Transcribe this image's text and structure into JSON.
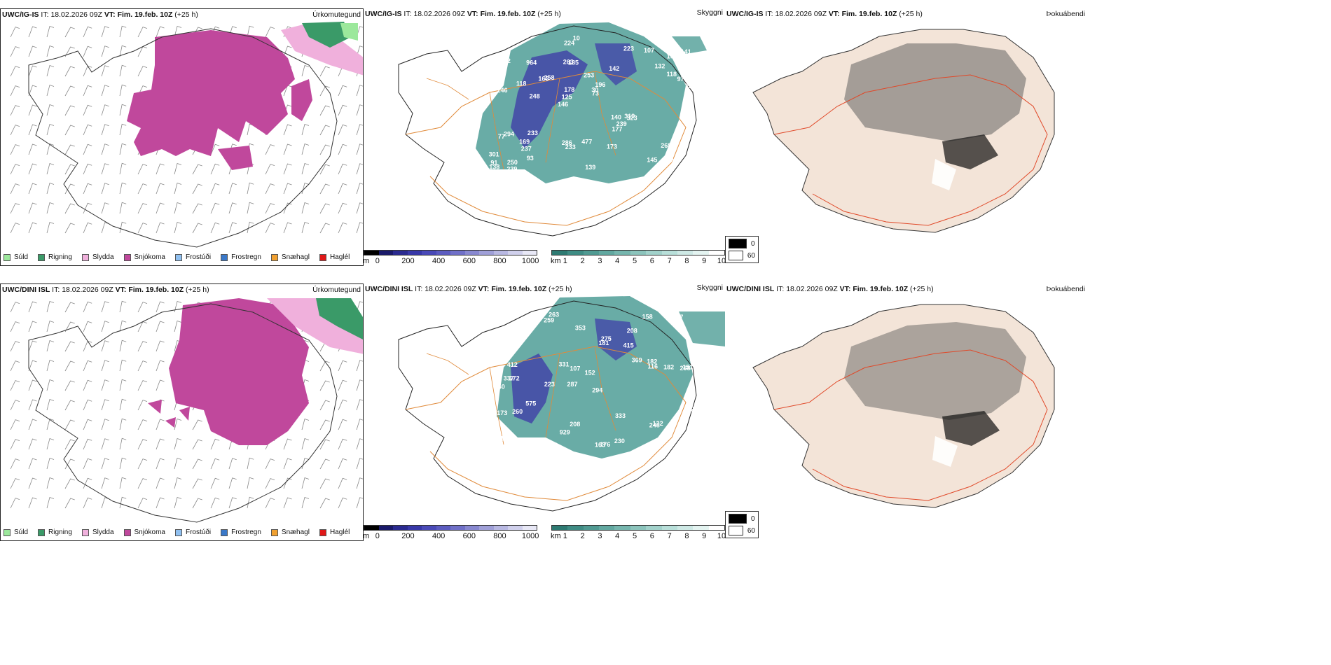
{
  "colors": {
    "precip_snow": "#c0489c",
    "precip_sleet": "#f0b0dc",
    "precip_rain": "#3a9a68",
    "precip_drizzle": "#9ce89c",
    "cloud_teal": "#4f9e96",
    "cloud_blue": "#4040a8",
    "land_fog": "#f3e4d8",
    "roads_orange": "#e08a3a",
    "roads_red": "#e04828"
  },
  "rows": [
    {
      "model": "UWC/IG-IS",
      "it_label": "IT:",
      "it_value": "18.02.2026 09Z",
      "vt_label": "VT:",
      "vt_value": "Fim. 19.feb. 10Z",
      "lead": "(+25 h)",
      "cloud_labels": [
        "370",
        "246",
        "105",
        "146",
        "142",
        "250",
        "263",
        "253",
        "294",
        "258",
        "301",
        "237",
        "185",
        "196",
        "323",
        "182",
        "224",
        "221",
        "140",
        "118",
        "125",
        "286",
        "178",
        "964",
        "223",
        "233",
        "145",
        "268",
        "319",
        "139",
        "165",
        "118",
        "177",
        "93",
        "97",
        "30",
        "91",
        "233",
        "73",
        "77",
        "132",
        "141",
        "239",
        "173",
        "169",
        "239",
        "138",
        "477",
        "107",
        "10",
        "248",
        "215"
      ]
    },
    {
      "model": "UWC/DINI ISL",
      "it_label": "IT:",
      "it_value": "18.02.2026 09Z",
      "vt_label": "VT:",
      "vt_value": "Fim. 19.feb. 10Z",
      "lead": "(+25 h)",
      "cloud_labels": [
        "263",
        "208",
        "268",
        "287",
        "294",
        "172",
        "517",
        "415",
        "360",
        "181",
        "152",
        "131",
        "259",
        "223",
        "163",
        "176",
        "208",
        "158",
        "369",
        "575",
        "412",
        "337",
        "151",
        "182",
        "264",
        "95",
        "107",
        "116",
        "132",
        "173",
        "248",
        "275",
        "260",
        "331",
        "333",
        "142",
        "182",
        "929",
        "187",
        "353",
        "30",
        "363",
        "230",
        "95"
      ]
    }
  ],
  "panels": {
    "precip": {
      "name": "Úrkomutegund"
    },
    "cloud": {
      "name": "Skyggni"
    },
    "fog": {
      "name": "Þokuábendi"
    }
  },
  "precip_legend": [
    {
      "label": "Súld",
      "color": "#9ce89c"
    },
    {
      "label": "Rigning",
      "color": "#3a9a68"
    },
    {
      "label": "Slydda",
      "color": "#f0b0dc"
    },
    {
      "label": "Snjókoma",
      "color": "#c0489c"
    },
    {
      "label": "Frostúði",
      "color": "#90c0f0"
    },
    {
      "label": "Frostregn",
      "color": "#3a78c8"
    },
    {
      "label": "Snæhagl",
      "color": "#f0a030"
    },
    {
      "label": "Haglél",
      "color": "#e01818"
    }
  ],
  "ceiling_bar": {
    "unit": "m",
    "ticks": [
      "0",
      "200",
      "400",
      "600",
      "800",
      "1000"
    ],
    "colors": [
      "#000000",
      "#1a1a6a",
      "#2a2a90",
      "#3838a8",
      "#4a4ab8",
      "#5c5cc0",
      "#7070c8",
      "#8888d0",
      "#a0a0d8",
      "#b8b8e2",
      "#d0d0ec",
      "#e8e8f6"
    ]
  },
  "visibility_bar": {
    "unit": "km",
    "ticks": [
      "1",
      "2",
      "3",
      "4",
      "5",
      "6",
      "7",
      "8",
      "9",
      "10"
    ],
    "colors": [
      "#2e7a72",
      "#3f8c84",
      "#509a92",
      "#62a8a0",
      "#76b6ae",
      "#8cc4bc",
      "#a2d2cb",
      "#b8dfd9",
      "#cee9e5",
      "#e4f4f1",
      "#ffffff"
    ]
  },
  "fog_legend": [
    {
      "label": "0",
      "color": "#000000"
    },
    {
      "label": "60",
      "color": "#ffffff"
    }
  ]
}
